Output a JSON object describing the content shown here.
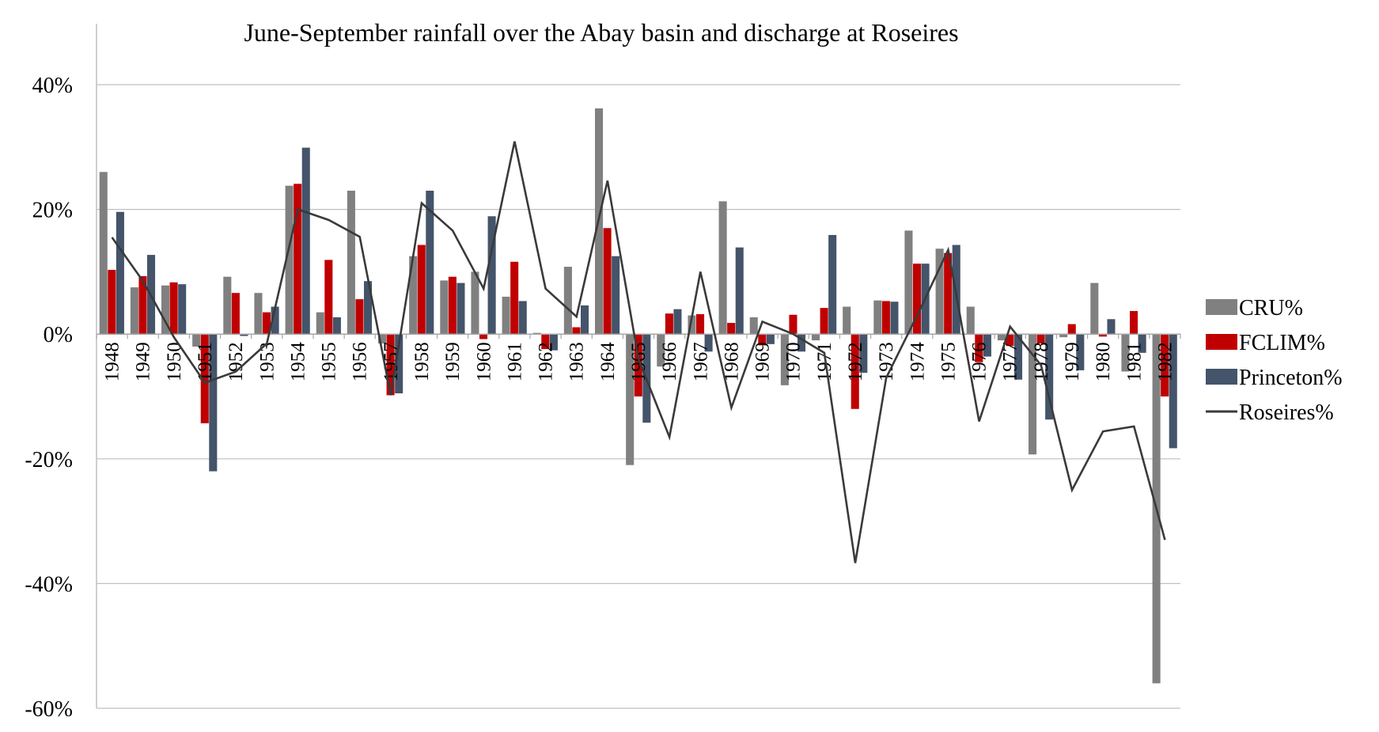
{
  "chart_data": {
    "type": "bar",
    "title": "June-September rainfall over the Abay basin and discharge at Roseires",
    "xlabel": "",
    "ylabel": "",
    "ylim": [
      -0.6,
      0.4
    ],
    "yticks": [
      {
        "value": 0.4,
        "label": "40%"
      },
      {
        "value": 0.2,
        "label": "20%"
      },
      {
        "value": 0.0,
        "label": "0%"
      },
      {
        "value": -0.2,
        "label": "-20%"
      },
      {
        "value": -0.4,
        "label": "-40%"
      },
      {
        "value": -0.6,
        "label": "-60%"
      }
    ],
    "grid": true,
    "legend_position": "right",
    "categories": [
      "1948",
      "1949",
      "1950",
      "1951",
      "1952",
      "1953",
      "1954",
      "1955",
      "1956",
      "1957",
      "1958",
      "1959",
      "1960",
      "1961",
      "1962",
      "1963",
      "1964",
      "1965",
      "1966",
      "1967",
      "1968",
      "1969",
      "1970",
      "1971",
      "1972",
      "1973",
      "1974",
      "1975",
      "1976",
      "1977",
      "1978",
      "1979",
      "1980",
      "1981",
      "1982"
    ],
    "series": [
      {
        "name": "CRU%",
        "kind": "bar",
        "color": "#808080",
        "values": [
          0.26,
          0.075,
          0.078,
          -0.02,
          0.092,
          0.066,
          0.238,
          0.035,
          0.23,
          -0.015,
          0.125,
          0.086,
          0.1,
          0.06,
          0.002,
          0.108,
          0.362,
          -0.21,
          -0.052,
          0.03,
          0.213,
          0.027,
          -0.082,
          -0.01,
          0.044,
          0.054,
          0.166,
          0.137,
          0.044,
          -0.01,
          -0.193,
          -0.005,
          0.082,
          -0.06,
          -0.56
        ]
      },
      {
        "name": "FCLIM%",
        "kind": "bar",
        "color": "#c00000",
        "values": [
          0.103,
          0.093,
          0.083,
          -0.143,
          0.066,
          0.035,
          0.241,
          0.119,
          0.056,
          -0.098,
          0.143,
          0.092,
          -0.008,
          0.116,
          -0.024,
          0.011,
          0.17,
          -0.1,
          0.033,
          0.032,
          0.018,
          -0.018,
          0.031,
          0.042,
          -0.12,
          0.053,
          0.113,
          0.13,
          -0.045,
          -0.019,
          -0.015,
          0.016,
          -0.004,
          0.037,
          -0.1
        ]
      },
      {
        "name": "Princeton%",
        "kind": "bar",
        "color": "#44546a",
        "values": [
          0.196,
          0.127,
          0.08,
          -0.22,
          -0.003,
          0.044,
          0.299,
          0.027,
          0.085,
          -0.095,
          0.23,
          0.082,
          0.189,
          0.053,
          -0.026,
          0.046,
          0.125,
          -0.142,
          0.04,
          -0.028,
          0.139,
          -0.016,
          -0.028,
          0.159,
          -0.062,
          0.052,
          0.113,
          0.143,
          -0.036,
          -0.073,
          -0.137,
          -0.058,
          0.024,
          -0.03,
          -0.183
        ]
      },
      {
        "name": "Roseires%",
        "kind": "line",
        "color": "#3a3a3a",
        "values": [
          0.155,
          0.085,
          -0.005,
          -0.078,
          -0.06,
          -0.015,
          0.2,
          0.183,
          0.156,
          -0.098,
          0.21,
          0.166,
          0.073,
          0.309,
          0.073,
          0.028,
          0.246,
          -0.04,
          -0.165,
          0.1,
          -0.118,
          0.02,
          0.0,
          -0.03,
          -0.367,
          -0.07,
          0.03,
          0.135,
          -0.14,
          0.012,
          -0.05,
          -0.25,
          -0.156,
          -0.148,
          -0.33
        ]
      }
    ]
  }
}
